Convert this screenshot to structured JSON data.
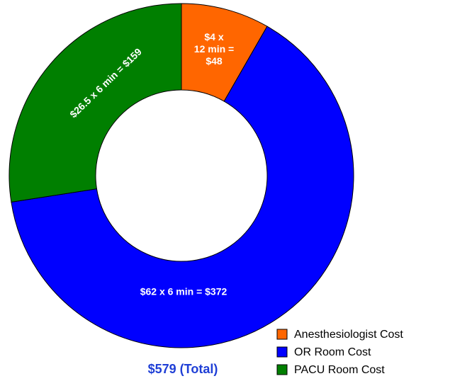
{
  "chart_data": {
    "type": "donut",
    "categories": [
      "Anesthesiologist Cost",
      "OR Room Cost",
      "PACU Room Cost"
    ],
    "values": [
      48,
      372,
      159
    ],
    "value_labels": [
      "$4 x\n12 min =\n$48",
      "$62 x 6 min = $372",
      "$26.5 x 6 min = $159"
    ],
    "colors": [
      "#ff6600",
      "#0000ff",
      "#007f00"
    ],
    "total_label": "$579 (Total)",
    "legend": "bottom-right"
  }
}
